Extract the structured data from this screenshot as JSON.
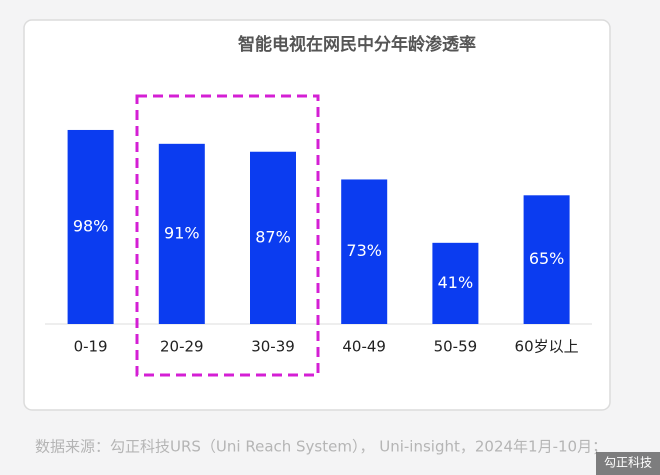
{
  "chart_data": {
    "type": "bar",
    "title": "智能电视在网民中分年龄渗透率",
    "categories": [
      "0-19",
      "20-29",
      "30-39",
      "40-49",
      "50-59",
      "60岁以上"
    ],
    "values": [
      98,
      91,
      87,
      73,
      41,
      65
    ],
    "value_labels": [
      "98%",
      "91%",
      "87%",
      "73%",
      "41%",
      "65%"
    ],
    "color": "#0b3cf0"
  },
  "footer": {
    "source": "数据来源：勾正科技URS（Uni Reach System）， Uni-insight，2024年1月-10月；",
    "watermark": "勾正科技"
  }
}
